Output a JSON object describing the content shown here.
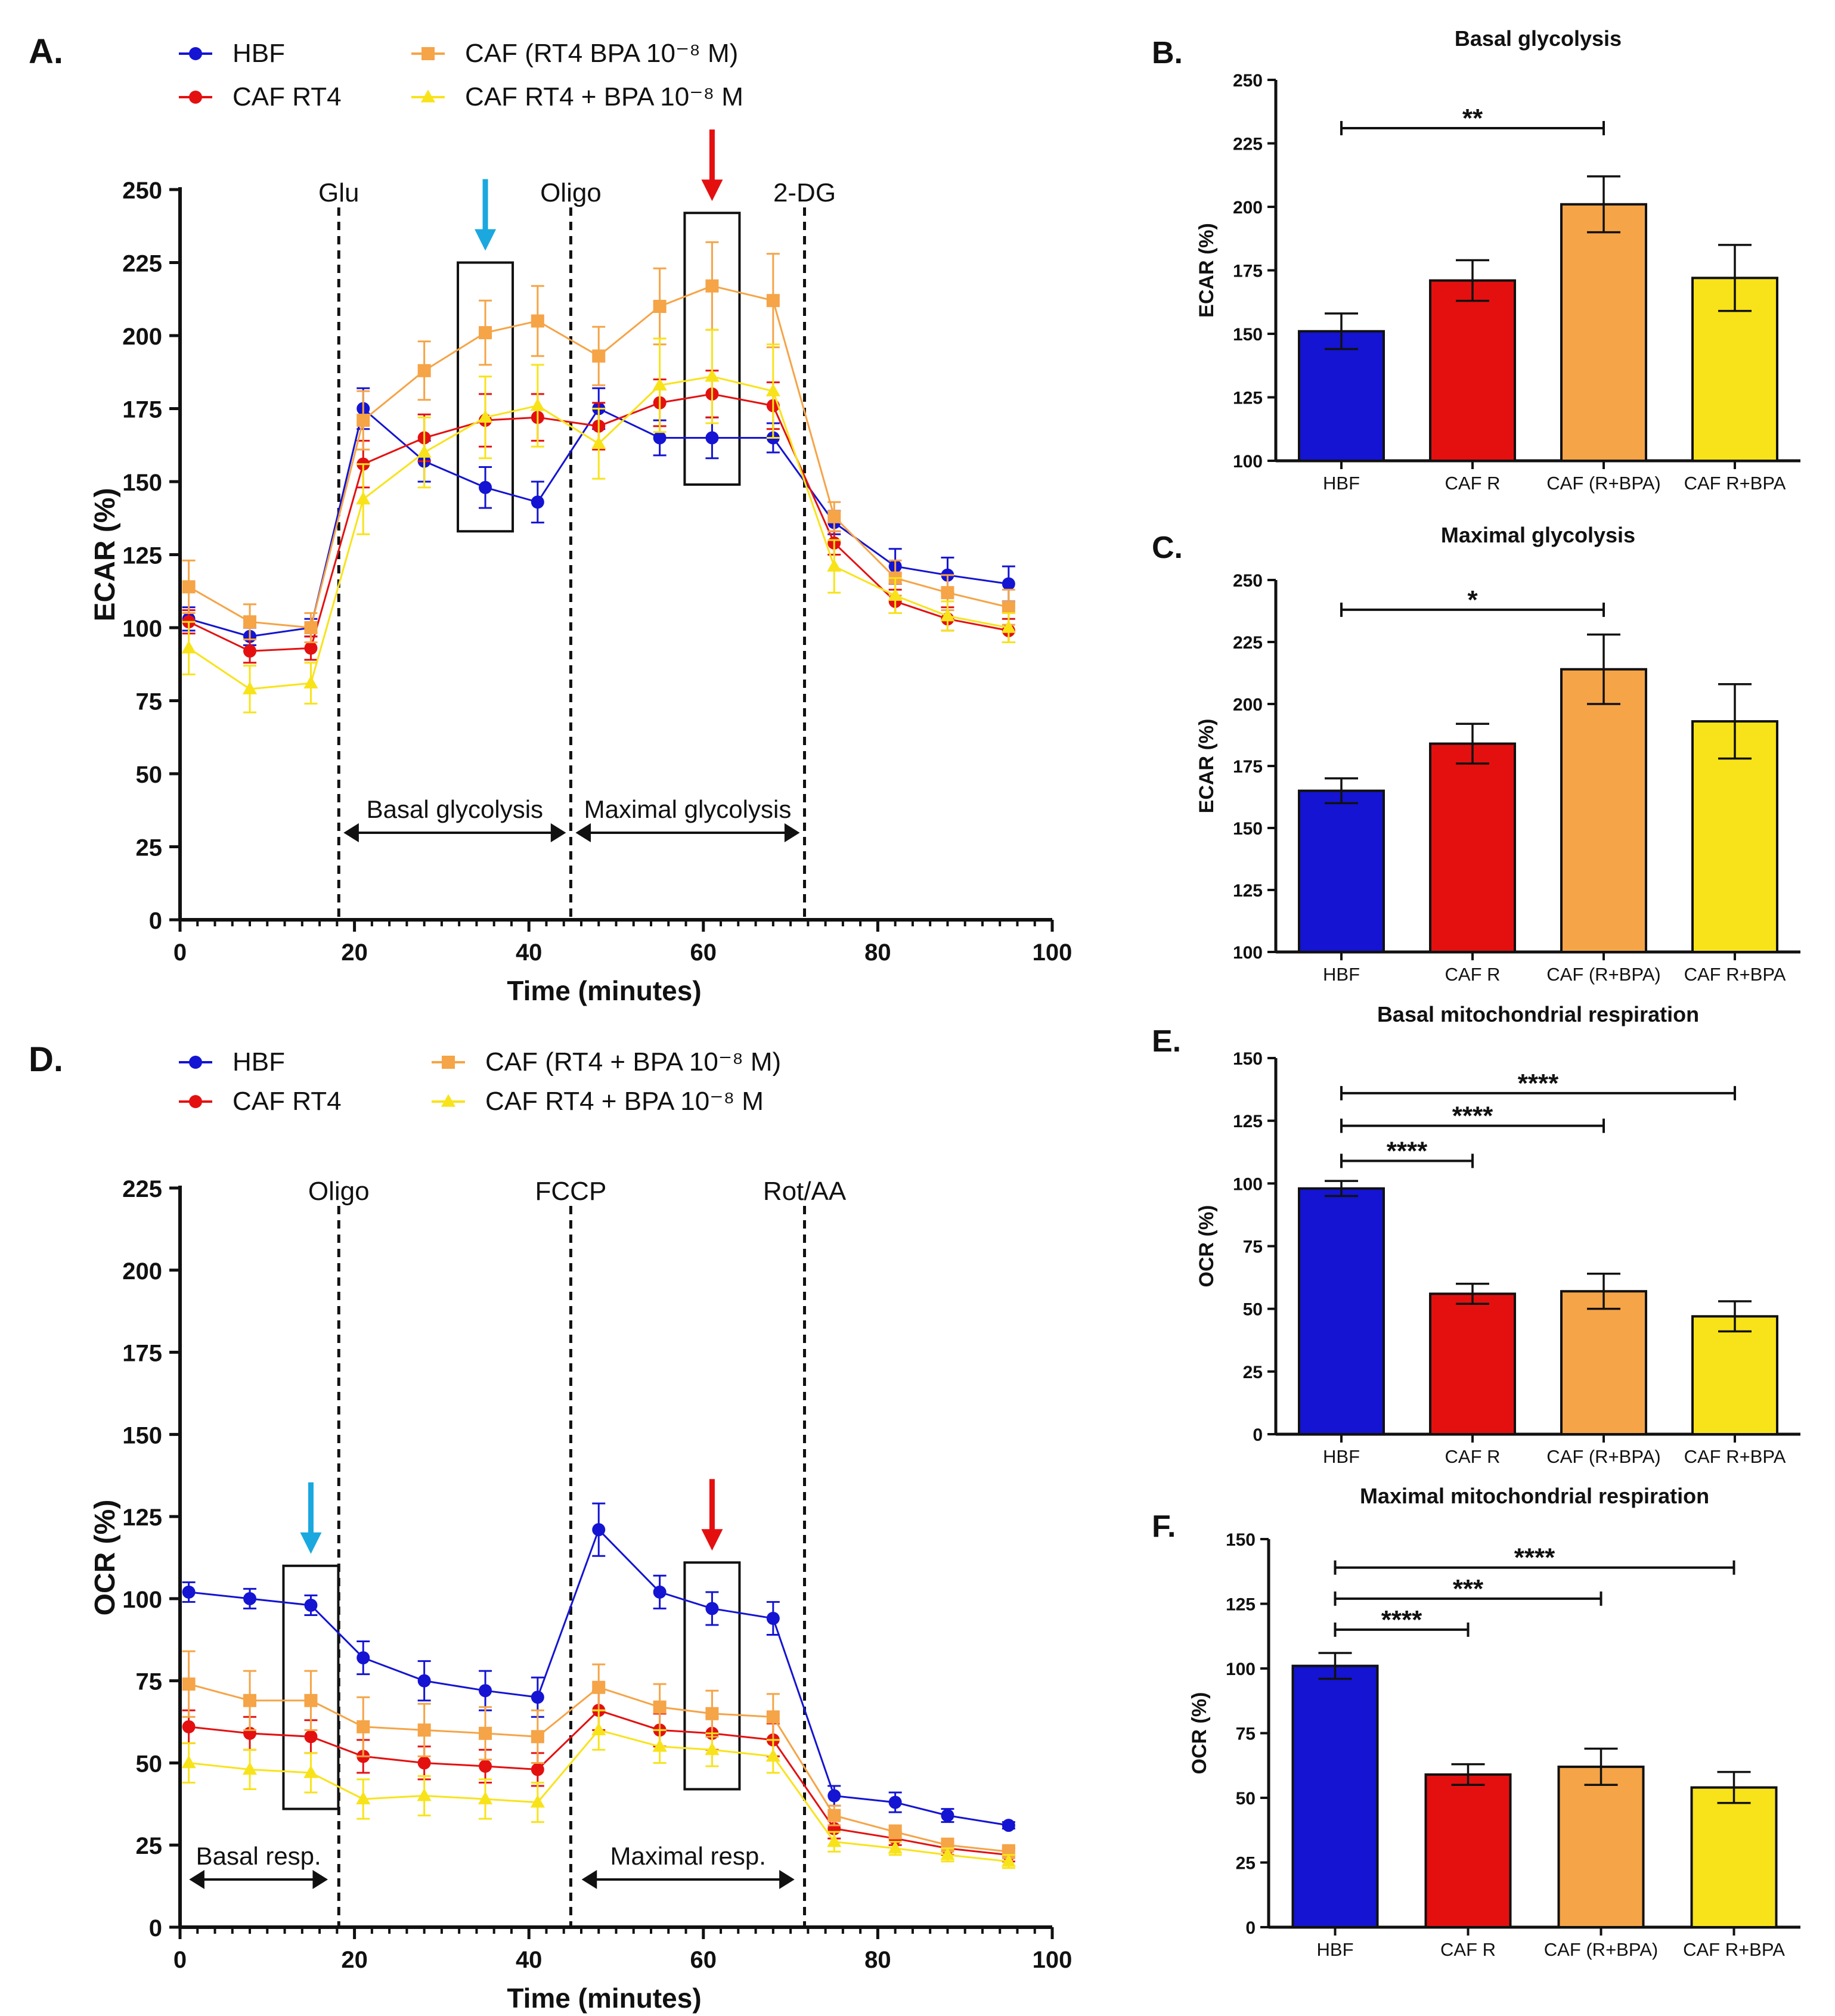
{
  "colors": {
    "HBF": "#1414d2",
    "CAF_R": "#e41010",
    "CAF_RBPA": "#f5a447",
    "CAF_BPA": "#f8e31a",
    "cyan_arrow": "#1aa8df",
    "red_arrow": "#e41010"
  },
  "chart_data": [
    {
      "panel": "A.",
      "type": "line",
      "xlabel": "Time (minutes)",
      "ylabel": "ECAR (%)",
      "xlim": [
        0,
        100
      ],
      "ylim": [
        0,
        250
      ],
      "xticks": [
        "0",
        "20",
        "40",
        "60",
        "80",
        "100"
      ],
      "yticks": [
        "0",
        "25",
        "50",
        "75",
        "100",
        "125",
        "150",
        "175",
        "200",
        "225",
        "250"
      ],
      "injections": [
        {
          "label": "Glu",
          "x": 18.2
        },
        {
          "label": "Oligo",
          "x": 44.8
        },
        {
          "label": "2-DG",
          "x": 71.6
        }
      ],
      "phases": [
        {
          "label": "Basal glycolysis",
          "from": 18.2,
          "to": 44.8
        },
        {
          "label": "Maximal glycolysis",
          "from": 44.8,
          "to": 71.6
        }
      ],
      "highlight_boxes": [
        {
          "x": 35,
          "ymin": 133,
          "ymax": 225,
          "arrow": "cyan_arrow"
        },
        {
          "x": 61,
          "ymin": 149,
          "ymax": 242,
          "arrow": "red_arrow"
        }
      ],
      "legend": [
        "HBF",
        "CAF RT4",
        "CAF (RT4 BPA 10⁻⁸ M)",
        "CAF RT4 + BPA 10⁻⁸ M"
      ],
      "x": [
        1,
        8,
        15,
        21,
        28,
        35,
        41,
        48,
        55,
        61,
        68,
        75,
        82,
        88,
        95
      ],
      "series": [
        {
          "name": "HBF",
          "color_key": "HBF",
          "marker": "circle",
          "values": [
            103,
            97,
            100,
            175,
            157,
            148,
            143,
            175,
            165,
            165,
            165,
            136,
            121,
            118,
            115
          ],
          "errors": [
            4,
            3,
            3,
            7,
            7,
            7,
            7,
            7,
            6,
            7,
            5,
            4,
            6,
            6,
            6
          ]
        },
        {
          "name": "CAF RT4",
          "color_key": "CAF_R",
          "marker": "circle",
          "values": [
            102,
            92,
            93,
            156,
            165,
            171,
            172,
            169,
            177,
            180,
            176,
            129,
            109,
            103,
            99
          ],
          "errors": [
            4,
            4,
            4,
            8,
            8,
            9,
            8,
            8,
            8,
            8,
            8,
            4,
            4,
            4,
            4
          ]
        },
        {
          "name": "CAF (RT4 BPA 10⁻⁸ M)",
          "color_key": "CAF_RBPA",
          "marker": "square",
          "values": [
            114,
            102,
            100,
            171,
            188,
            201,
            205,
            193,
            210,
            217,
            212,
            138,
            117,
            112,
            107
          ],
          "errors": [
            9,
            6,
            5,
            10,
            10,
            11,
            12,
            10,
            13,
            15,
            16,
            5,
            6,
            6,
            6
          ]
        },
        {
          "name": "CAF RT4 + BPA 10⁻⁸ M",
          "color_key": "CAF_BPA",
          "marker": "triangle",
          "values": [
            93,
            79,
            81,
            144,
            160,
            172,
            176,
            163,
            183,
            186,
            181,
            121,
            111,
            104,
            100
          ],
          "errors": [
            9,
            8,
            7,
            12,
            12,
            14,
            14,
            12,
            16,
            16,
            16,
            9,
            6,
            5,
            5
          ]
        }
      ]
    },
    {
      "panel": "D.",
      "type": "line",
      "xlabel": "Time (minutes)",
      "ylabel": "OCR (%)",
      "xlim": [
        0,
        100
      ],
      "ylim": [
        0,
        225
      ],
      "xticks": [
        "0",
        "20",
        "40",
        "60",
        "80",
        "100"
      ],
      "yticks": [
        "0",
        "25",
        "50",
        "75",
        "100",
        "125",
        "150",
        "175",
        "200",
        "225"
      ],
      "injections": [
        {
          "label": "Oligo",
          "x": 18.2
        },
        {
          "label": "FCCP",
          "x": 44.8
        },
        {
          "label": "Rot/AA",
          "x": 71.6
        }
      ],
      "phases": [
        {
          "label": "Basal resp.",
          "from": 0.5,
          "to": 17.5
        },
        {
          "label": "Maximal resp.",
          "from": 45.5,
          "to": 71
        }
      ],
      "highlight_boxes": [
        {
          "x": 15,
          "ymin": 36,
          "ymax": 110,
          "arrow": "cyan_arrow"
        },
        {
          "x": 61,
          "ymin": 42,
          "ymax": 111,
          "arrow": "red_arrow"
        }
      ],
      "legend": [
        "HBF",
        "CAF RT4",
        "CAF (RT4 + BPA 10⁻⁸ M)",
        "CAF RT4 + BPA 10⁻⁸ M"
      ],
      "x": [
        1,
        8,
        15,
        21,
        28,
        35,
        41,
        48,
        55,
        61,
        68,
        75,
        82,
        88,
        95
      ],
      "series": [
        {
          "name": "HBF",
          "color_key": "HBF",
          "marker": "circle",
          "values": [
            102,
            100,
            98,
            82,
            75,
            72,
            70,
            121,
            102,
            97,
            94,
            40,
            38,
            34,
            31
          ],
          "errors": [
            3,
            3,
            3,
            5,
            6,
            6,
            6,
            8,
            5,
            5,
            5,
            3,
            3,
            2,
            1
          ]
        },
        {
          "name": "CAF RT4",
          "color_key": "CAF_R",
          "marker": "circle",
          "values": [
            61,
            59,
            58,
            52,
            50,
            49,
            48,
            66,
            60,
            59,
            57,
            30,
            27,
            24,
            22
          ],
          "errors": [
            5,
            5,
            5,
            5,
            5,
            5,
            5,
            6,
            5,
            5,
            5,
            3,
            2,
            2,
            2
          ]
        },
        {
          "name": "CAF (RT4 + BPA 10⁻⁸ M)",
          "color_key": "CAF_RBPA",
          "marker": "square",
          "values": [
            74,
            69,
            69,
            61,
            60,
            59,
            58,
            73,
            67,
            65,
            64,
            34,
            29,
            25,
            23
          ],
          "errors": [
            10,
            9,
            9,
            9,
            8,
            8,
            8,
            7,
            7,
            7,
            7,
            3,
            2,
            2,
            2
          ]
        },
        {
          "name": "CAF RT4 + BPA 10⁻⁸ M",
          "color_key": "CAF_BPA",
          "marker": "triangle",
          "values": [
            50,
            48,
            47,
            39,
            40,
            39,
            38,
            60,
            55,
            54,
            52,
            26,
            24,
            22,
            20
          ],
          "errors": [
            6,
            6,
            6,
            6,
            6,
            6,
            6,
            6,
            5,
            5,
            5,
            3,
            2,
            2,
            2
          ]
        }
      ]
    },
    {
      "panel": "B.",
      "type": "bar",
      "title": "Basal glycolysis",
      "ylabel": "ECAR (%)",
      "ylim": [
        100,
        250
      ],
      "yticks": [
        "100",
        "125",
        "150",
        "175",
        "200",
        "225",
        "250"
      ],
      "categories": [
        "HBF",
        "CAF R",
        "CAF (R+BPA)",
        "CAF R+BPA"
      ],
      "color_keys": [
        "HBF",
        "CAF_R",
        "CAF_RBPA",
        "CAF_BPA"
      ],
      "values": [
        151,
        171,
        201,
        172
      ],
      "errors": [
        7,
        8,
        11,
        13
      ],
      "significance": [
        {
          "from": 0,
          "to": 2,
          "label": "**",
          "level": 231
        }
      ]
    },
    {
      "panel": "C.",
      "type": "bar",
      "title": "Maximal glycolysis",
      "ylabel": "ECAR (%)",
      "ylim": [
        100,
        250
      ],
      "yticks": [
        "100",
        "125",
        "150",
        "175",
        "200",
        "225",
        "250"
      ],
      "categories": [
        "HBF",
        "CAF R",
        "CAF (R+BPA)",
        "CAF R+BPA"
      ],
      "color_keys": [
        "HBF",
        "CAF_R",
        "CAF_RBPA",
        "CAF_BPA"
      ],
      "values": [
        165,
        184,
        214,
        193
      ],
      "errors": [
        5,
        8,
        14,
        15
      ],
      "significance": [
        {
          "from": 0,
          "to": 2,
          "label": "*",
          "level": 238
        }
      ]
    },
    {
      "panel": "E.",
      "type": "bar",
      "title": "Basal mitochondrial respiration",
      "ylabel": "OCR (%)",
      "ylim": [
        0,
        150
      ],
      "yticks": [
        "0",
        "25",
        "50",
        "75",
        "100",
        "125",
        "150"
      ],
      "categories": [
        "HBF",
        "CAF R",
        "CAF (R+BPA)",
        "CAF R+BPA"
      ],
      "color_keys": [
        "HBF",
        "CAF_R",
        "CAF_RBPA",
        "CAF_BPA"
      ],
      "values": [
        98,
        56,
        57,
        47
      ],
      "errors": [
        3,
        4,
        7,
        6
      ],
      "significance": [
        {
          "from": 0,
          "to": 3,
          "label": "****",
          "level": 136
        },
        {
          "from": 0,
          "to": 2,
          "label": "****",
          "level": 123
        },
        {
          "from": 0,
          "to": 1,
          "label": "****",
          "level": 109
        }
      ]
    },
    {
      "panel": "F.",
      "type": "bar",
      "title": "Maximal mitochondrial respiration",
      "ylabel": "OCR (%)",
      "ylim": [
        0,
        150
      ],
      "yticks": [
        "0",
        "25",
        "50",
        "75",
        "100",
        "125",
        "150"
      ],
      "categories": [
        "HBF",
        "CAF R",
        "CAF (R+BPA)",
        "CAF R+BPA"
      ],
      "color_keys": [
        "HBF",
        "CAF_R",
        "CAF_RBPA",
        "CAF_BPA"
      ],
      "values": [
        101,
        59,
        62,
        54
      ],
      "errors": [
        5,
        4,
        7,
        6
      ],
      "significance": [
        {
          "from": 0,
          "to": 3,
          "label": "****",
          "level": 139
        },
        {
          "from": 0,
          "to": 2,
          "label": "***",
          "level": 127
        },
        {
          "from": 0,
          "to": 1,
          "label": "****",
          "level": 115
        }
      ]
    }
  ]
}
